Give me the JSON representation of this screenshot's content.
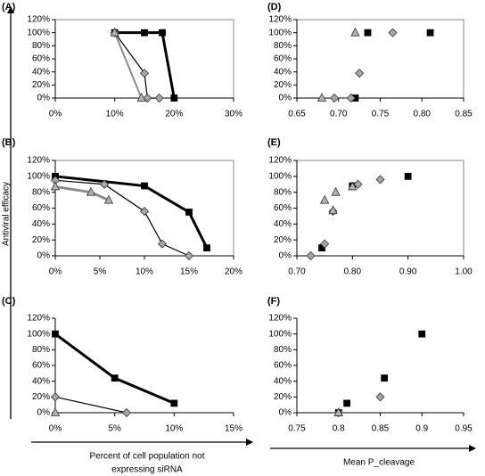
{
  "chart_data": [
    {
      "type": "line",
      "title": "(A)",
      "frame": true,
      "xlim": [
        0,
        30
      ],
      "xticks": [
        {
          "value": 0,
          "label": "0%"
        },
        {
          "value": 10,
          "label": "10%"
        },
        {
          "value": 20,
          "label": "20%"
        },
        {
          "value": 30,
          "label": "30%"
        }
      ],
      "ylim": [
        0,
        120
      ],
      "yticks": [
        {
          "value": 0,
          "label": "0%"
        },
        {
          "value": 20,
          "label": "20%"
        },
        {
          "value": 40,
          "label": "40%"
        },
        {
          "value": 60,
          "label": "60%"
        },
        {
          "value": 80,
          "label": "80%"
        },
        {
          "value": 100,
          "label": "100%"
        },
        {
          "value": 120,
          "label": "120%"
        }
      ],
      "series": [
        {
          "marker": "square",
          "color": "#000000",
          "marker_color": "#000000",
          "line_width": 3,
          "x": [
            10,
            15,
            18,
            20
          ],
          "values": [
            100,
            100,
            100,
            0
          ]
        },
        {
          "marker": "diamond",
          "color": "#000000",
          "marker_color": "#a6a6a6",
          "line_width": 1.2,
          "x": [
            10,
            15,
            15.5,
            17.5
          ],
          "values": [
            100,
            38,
            0,
            0
          ]
        },
        {
          "marker": "triangle",
          "color": "#8c8c8c",
          "marker_color": "#b3b3b3",
          "line_width": 2,
          "x": [
            10,
            14.5
          ],
          "values": [
            100,
            0
          ]
        }
      ]
    },
    {
      "type": "line",
      "title": "(B)",
      "frame": true,
      "xlim": [
        0,
        20
      ],
      "xticks": [
        {
          "value": 0,
          "label": "0%"
        },
        {
          "value": 5,
          "label": "5%"
        },
        {
          "value": 10,
          "label": "10%"
        },
        {
          "value": 15,
          "label": "15%"
        },
        {
          "value": 20,
          "label": "20%"
        }
      ],
      "ylim": [
        0,
        120
      ],
      "yticks": [
        {
          "value": 0,
          "label": "0%"
        },
        {
          "value": 20,
          "label": "20%"
        },
        {
          "value": 40,
          "label": "40%"
        },
        {
          "value": 60,
          "label": "60%"
        },
        {
          "value": 80,
          "label": "80%"
        },
        {
          "value": 100,
          "label": "100%"
        },
        {
          "value": 120,
          "label": "120%"
        }
      ],
      "series": [
        {
          "marker": "square",
          "color": "#000000",
          "marker_color": "#000000",
          "line_width": 3,
          "x": [
            0,
            10,
            15,
            17
          ],
          "values": [
            100,
            88,
            55,
            10
          ]
        },
        {
          "marker": "diamond",
          "color": "#000000",
          "marker_color": "#a6a6a6",
          "line_width": 1.2,
          "x": [
            0,
            5.5,
            10,
            12,
            15
          ],
          "values": [
            95,
            90,
            56,
            15,
            0
          ]
        },
        {
          "marker": "triangle",
          "color": "#8c8c8c",
          "marker_color": "#b3b3b3",
          "line_width": 3,
          "x": [
            0,
            4,
            6
          ],
          "values": [
            87,
            80,
            70
          ]
        }
      ]
    },
    {
      "type": "line",
      "title": "(C)",
      "frame": false,
      "xlim": [
        0,
        15
      ],
      "xticks": [
        {
          "value": 0,
          "label": "0%"
        },
        {
          "value": 5,
          "label": "5%"
        },
        {
          "value": 10,
          "label": "10%"
        },
        {
          "value": 15,
          "label": "15%"
        }
      ],
      "ylim": [
        0,
        120
      ],
      "yticks": [
        {
          "value": 0,
          "label": "0%"
        },
        {
          "value": 20,
          "label": "20%"
        },
        {
          "value": 40,
          "label": "40%"
        },
        {
          "value": 60,
          "label": "60%"
        },
        {
          "value": 80,
          "label": "80%"
        },
        {
          "value": 100,
          "label": "100%"
        },
        {
          "value": 120,
          "label": "120%"
        }
      ],
      "series": [
        {
          "marker": "square",
          "color": "#000000",
          "marker_color": "#000000",
          "line_width": 3,
          "x": [
            0,
            5,
            10
          ],
          "values": [
            100,
            44,
            12
          ]
        },
        {
          "marker": "diamond",
          "color": "#000000",
          "marker_color": "#a6a6a6",
          "line_width": 1.2,
          "x": [
            0,
            6
          ],
          "values": [
            20,
            0
          ]
        },
        {
          "marker": "triangle",
          "color": "#8c8c8c",
          "marker_color": "#b3b3b3",
          "line_width": 2,
          "x": [
            0
          ],
          "values": [
            0
          ]
        }
      ]
    },
    {
      "type": "scatter",
      "title": "(D)",
      "frame": true,
      "xlim": [
        0.65,
        0.85
      ],
      "xticks": [
        0.65,
        {
          "value": 0.7,
          "label": "0.70"
        },
        0.75,
        {
          "value": 0.8,
          "label": "0.80"
        },
        0.85
      ],
      "ylim": [
        0,
        120
      ],
      "yticks": [
        {
          "value": 0,
          "label": "0%"
        },
        {
          "value": 20,
          "label": "20%"
        },
        {
          "value": 40,
          "label": "40%"
        },
        {
          "value": 60,
          "label": "60%"
        },
        {
          "value": 80,
          "label": "80%"
        },
        {
          "value": 100,
          "label": "100%"
        },
        {
          "value": 120,
          "label": "120%"
        }
      ],
      "series": [
        {
          "marker": "square",
          "marker_color": "#000000",
          "x": [
            0.735,
            0.81,
            0.72
          ],
          "values": [
            100,
            100,
            0
          ]
        },
        {
          "marker": "diamond",
          "marker_color": "#a6a6a6",
          "x": [
            0.765,
            0.725,
            0.715,
            0.695
          ],
          "values": [
            100,
            38,
            0,
            0
          ]
        },
        {
          "marker": "triangle",
          "marker_color": "#b3b3b3",
          "x": [
            0.72,
            0.68
          ],
          "values": [
            100,
            0
          ]
        }
      ]
    },
    {
      "type": "scatter",
      "title": "(E)",
      "frame": true,
      "xlim": [
        0.7,
        1.0
      ],
      "xticks": [
        {
          "value": 0.7,
          "label": "0.70"
        },
        {
          "value": 0.8,
          "label": "0.80"
        },
        {
          "value": 0.9,
          "label": "0.90"
        },
        {
          "value": 1.0,
          "label": "1.00"
        }
      ],
      "ylim": [
        0,
        120
      ],
      "yticks": [
        {
          "value": 0,
          "label": "0%"
        },
        {
          "value": 20,
          "label": "20%"
        },
        {
          "value": 40,
          "label": "40%"
        },
        {
          "value": 60,
          "label": "60%"
        },
        {
          "value": 80,
          "label": "80%"
        },
        {
          "value": 100,
          "label": "100%"
        },
        {
          "value": 120,
          "label": "120%"
        }
      ],
      "series": [
        {
          "marker": "square",
          "marker_color": "#000000",
          "x": [
            0.9,
            0.8,
            0.745
          ],
          "values": [
            100,
            88,
            10
          ]
        },
        {
          "marker": "diamond",
          "marker_color": "#a6a6a6",
          "x": [
            0.85,
            0.81,
            0.765,
            0.75,
            0.725
          ],
          "values": [
            96,
            90,
            56,
            15,
            0
          ]
        },
        {
          "marker": "triangle",
          "marker_color": "#b3b3b3",
          "x": [
            0.77,
            0.75,
            0.8,
            0.765
          ],
          "values": [
            80,
            70,
            87,
            57
          ]
        }
      ]
    },
    {
      "type": "scatter",
      "title": "(F)",
      "frame": false,
      "xlim": [
        0.75,
        0.95
      ],
      "xticks": [
        0.75,
        0.8,
        0.85,
        0.9,
        0.95
      ],
      "ylim": [
        0,
        120
      ],
      "yticks": [
        {
          "value": 0,
          "label": "0%"
        },
        {
          "value": 20,
          "label": "20%"
        },
        {
          "value": 40,
          "label": "40%"
        },
        {
          "value": 60,
          "label": "60%"
        },
        {
          "value": 80,
          "label": "80%"
        },
        {
          "value": 100,
          "label": "100%"
        },
        {
          "value": 120,
          "label": "120%"
        }
      ],
      "series": [
        {
          "marker": "square",
          "marker_color": "#000000",
          "x": [
            0.9,
            0.855,
            0.81,
            0.8
          ],
          "values": [
            100,
            44,
            12,
            0
          ]
        },
        {
          "marker": "diamond",
          "marker_color": "#a6a6a6",
          "x": [
            0.85,
            0.8
          ],
          "values": [
            20,
            0
          ]
        },
        {
          "marker": "triangle",
          "marker_color": "#b3b3b3",
          "x": [
            0.8
          ],
          "values": [
            0
          ]
        }
      ]
    }
  ],
  "axis_labels": {
    "y": "Antiviral efficacy",
    "x_left": [
      "Percent of cell population not",
      "expressing siRNA"
    ],
    "x_right": "Mean P_cleavage"
  }
}
